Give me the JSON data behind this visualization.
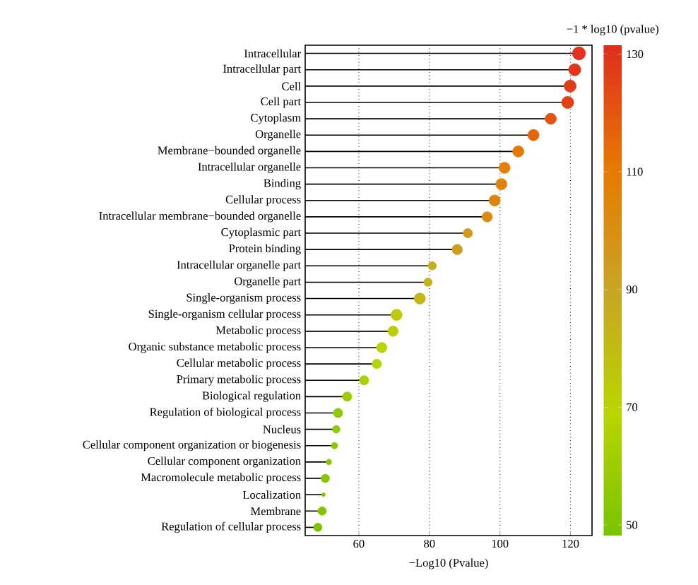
{
  "chart_data": {
    "type": "lollipop",
    "orientation": "horizontal",
    "xlabel": "−Log10 (Pvalue)",
    "clabel": "−1 * log10 (pvalue)",
    "categories": [
      "Intracellular",
      "Intracellular part",
      "Cell",
      "Cell part",
      "Cytoplasm",
      "Organelle",
      "Membrane−bounded organelle",
      "Intracellular organelle",
      "Binding",
      "Cellular process",
      "Intracellular membrane−bounded organelle",
      "Cytoplasmic part",
      "Protein binding",
      "Intracellular organelle part",
      "Organelle part",
      "Single-organism process",
      "Single-organism cellular process",
      "Metabolic process",
      "Organic substance metabolic process",
      "Cellular metabolic process",
      "Primary metabolic process",
      "Biological regulation",
      "Regulation of biological process",
      "Nucleus",
      "Cellular component organization or biogenesis",
      "Cellular component organization",
      "Macromolecule metabolic process",
      "Localization",
      "Membrane",
      "Regulation of cellular process"
    ],
    "values": [
      122.4,
      121.2,
      119.9,
      119.2,
      114.4,
      109.5,
      105.2,
      101.3,
      100.4,
      98.5,
      96.4,
      90.9,
      87.9,
      80.8,
      79.6,
      77.3,
      70.7,
      69.7,
      66.5,
      65.1,
      61.5,
      56.7,
      54.1,
      53.6,
      53.1,
      51.5,
      50.5,
      50.0,
      49.6,
      48.4
    ],
    "cvalues": [
      130,
      129,
      127,
      126,
      121,
      116,
      111,
      107,
      106,
      104,
      102,
      96,
      93,
      85,
      84,
      81,
      74,
      73,
      70,
      68,
      64,
      59,
      56,
      56,
      55,
      53,
      52,
      52,
      51,
      50
    ],
    "sizes": [
      1.0,
      0.86,
      0.86,
      0.86,
      0.73,
      0.73,
      0.73,
      0.73,
      0.73,
      0.73,
      0.62,
      0.51,
      0.62,
      0.41,
      0.41,
      0.73,
      0.73,
      0.62,
      0.62,
      0.51,
      0.51,
      0.51,
      0.51,
      0.33,
      0.25,
      0.18,
      0.41,
      0.08,
      0.41,
      0.41
    ],
    "xlim": [
      44.8,
      126.1
    ],
    "xticks": [
      60,
      80,
      100,
      120
    ],
    "clim": [
      48.2,
      131.5
    ],
    "cticks": [
      50,
      70,
      90,
      110,
      130
    ],
    "grid": "x",
    "marker": "circle"
  }
}
